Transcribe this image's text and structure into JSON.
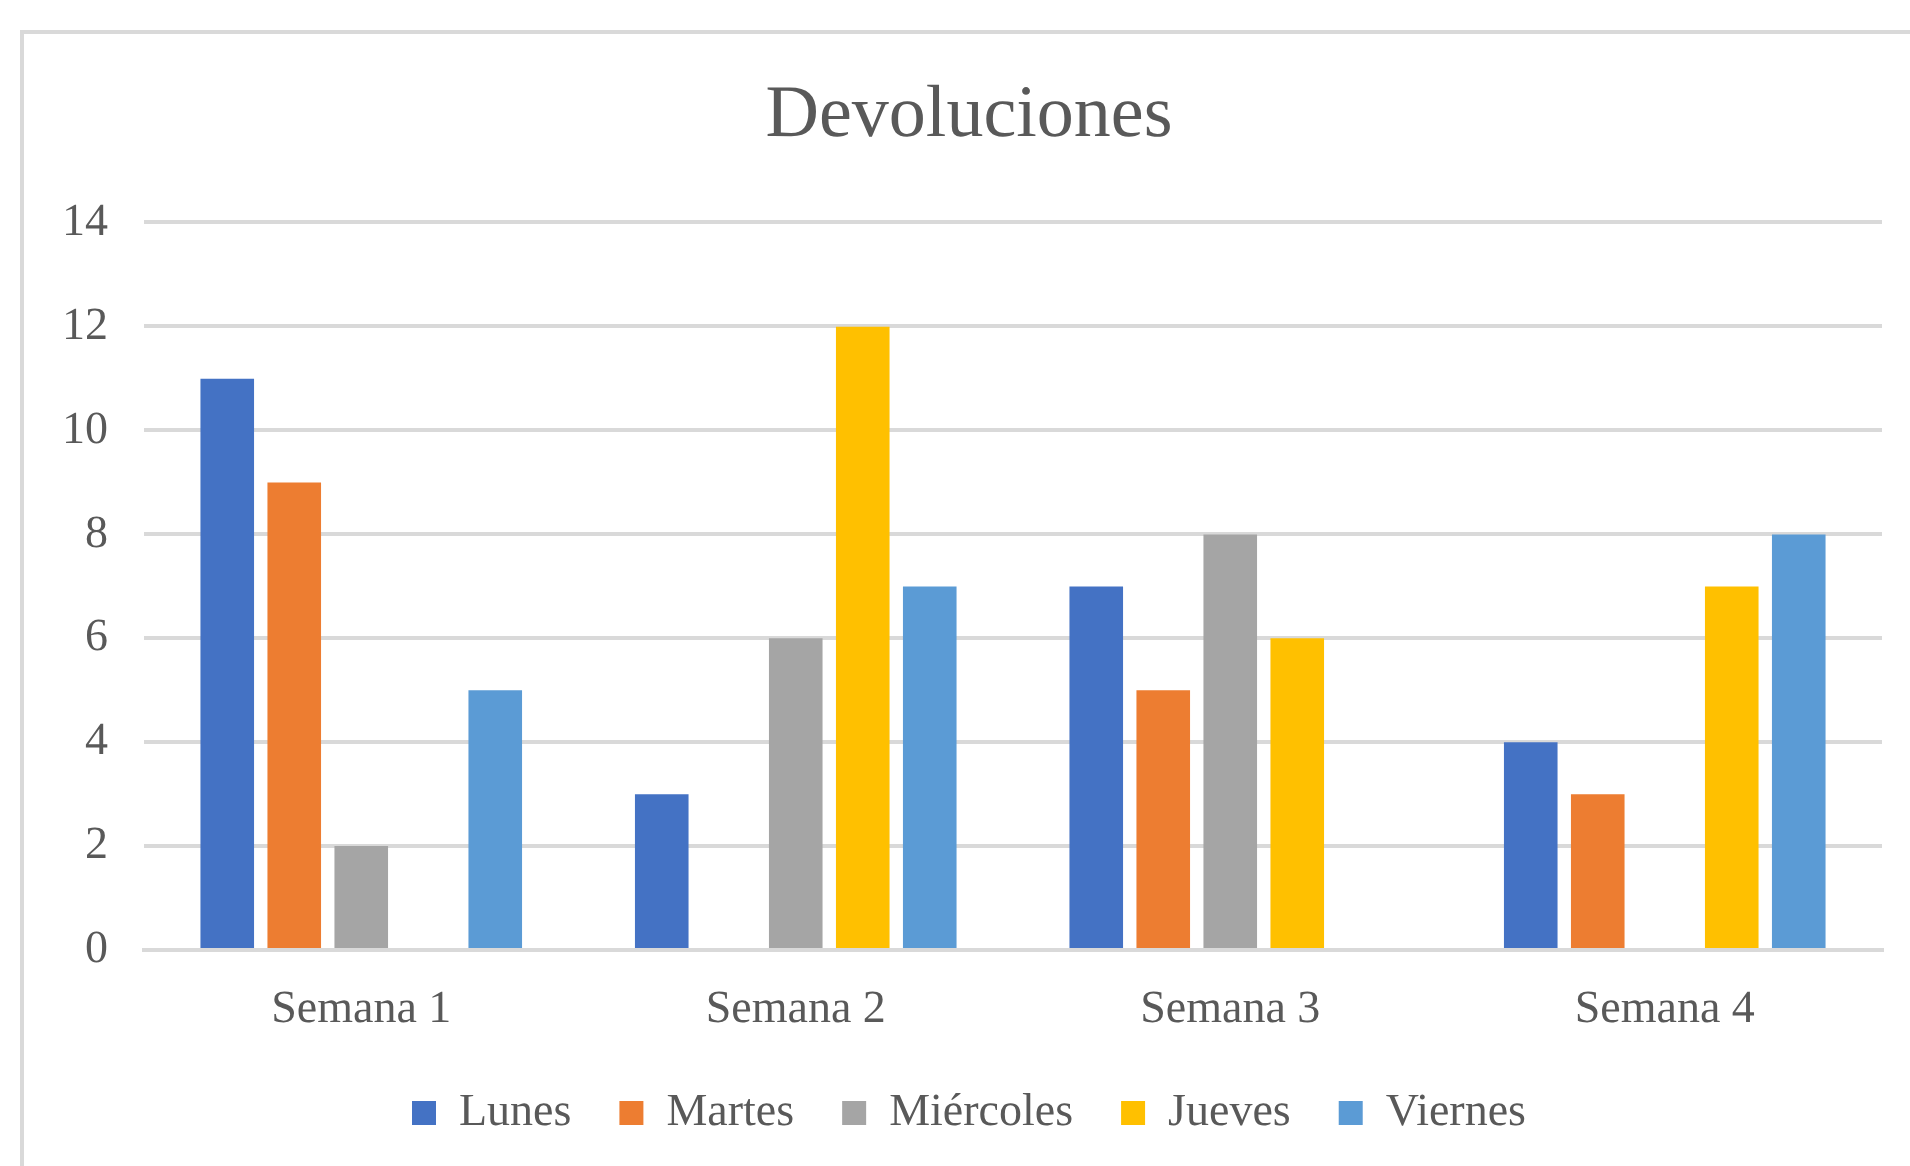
{
  "chart_data": {
    "type": "bar",
    "title": "Devoluciones",
    "categories": [
      "Semana 1",
      "Semana 2",
      "Semana 3",
      "Semana 4"
    ],
    "series": [
      {
        "name": "Lunes",
        "color": "#4472c4",
        "values": [
          11,
          3,
          7,
          4
        ]
      },
      {
        "name": "Martes",
        "color": "#ed7d31",
        "values": [
          9,
          null,
          5,
          3
        ]
      },
      {
        "name": "Miércoles",
        "color": "#a5a5a5",
        "values": [
          2,
          6,
          8,
          null
        ]
      },
      {
        "name": "Jueves",
        "color": "#ffc000",
        "values": [
          null,
          12,
          6,
          7
        ]
      },
      {
        "name": "Viernes",
        "color": "#5b9bd5",
        "values": [
          5,
          7,
          null,
          8
        ]
      }
    ],
    "ylim": [
      0,
      14
    ],
    "yticks": [
      0,
      2,
      4,
      6,
      8,
      10,
      12,
      14
    ],
    "grid": "y",
    "legend": "bottom"
  }
}
